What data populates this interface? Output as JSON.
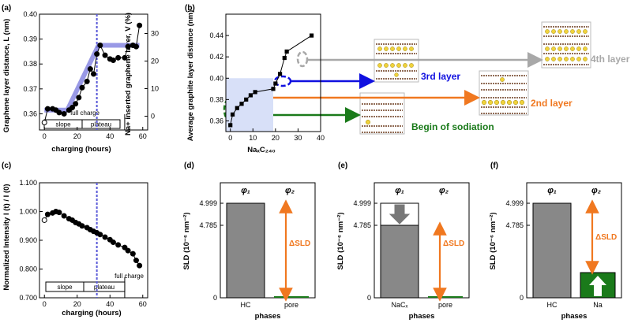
{
  "chart_data": [
    {
      "panel": "(a)",
      "type": "line",
      "xlabel": "charging (hours)",
      "ylabel": "Graphene layer distance, L (nm)",
      "y2label": "Na+ inserted graphene layer, V (%)",
      "xlim": [
        -3,
        63
      ],
      "ylim": [
        0.3535,
        0.4
      ],
      "y2lim": [
        -5,
        37
      ],
      "xticks": [
        0,
        20,
        40,
        60
      ],
      "yticks": [
        0.36,
        0.37,
        0.38,
        0.39,
        0.4
      ],
      "y2ticks": [
        0,
        10,
        20,
        30
      ],
      "series": [
        {
          "name": "",
          "kind": "band",
          "color": "#8080e0",
          "x": [
            0,
            8,
            14,
            33,
            58
          ],
          "y": [
            0.3615,
            0.3615,
            0.3615,
            0.3875,
            0.3875
          ]
        },
        {
          "name": "",
          "kind": "markers",
          "color": "#000000",
          "x": [
            0,
            2,
            5,
            7,
            9,
            12,
            15,
            17,
            19,
            21,
            23,
            26,
            28,
            30,
            32,
            34,
            37,
            40,
            42,
            45,
            49,
            51,
            54,
            56,
            58
          ],
          "y": [
            0.3565,
            0.362,
            0.362,
            0.3615,
            0.3605,
            0.36,
            0.3615,
            0.3625,
            0.364,
            0.3665,
            0.3705,
            0.373,
            0.378,
            0.376,
            0.384,
            0.3875,
            0.3835,
            0.382,
            0.3815,
            0.3825,
            0.3825,
            0.387,
            0.3875,
            0.387,
            0.3955
          ]
        }
      ],
      "vline": 32,
      "annotations": [
        "full charge",
        "slope",
        "plateau"
      ]
    },
    {
      "panel": "(b)",
      "type": "scatter",
      "xlabel": "NaₓC₂₄₀",
      "ylabel": "Average graphite layer distance (nm)",
      "xlim": [
        -2,
        40
      ],
      "ylim": [
        0.35,
        0.46
      ],
      "xticks": [
        0,
        10,
        20,
        30,
        40
      ],
      "yticks": [
        0.36,
        0.38,
        0.4,
        0.42,
        0.44
      ],
      "series": [
        {
          "name": "",
          "color": "#000000",
          "x": [
            0,
            1,
            3,
            5,
            7,
            9,
            11,
            19,
            20,
            22,
            24,
            25,
            36
          ],
          "y": [
            0.356,
            0.366,
            0.372,
            0.376,
            0.38,
            0.384,
            0.387,
            0.39,
            0.395,
            0.404,
            0.419,
            0.425,
            0.44
          ]
        }
      ],
      "annotations": [
        "3rd layer",
        "4th layer",
        "2nd layer",
        "Begin of sodiation"
      ]
    },
    {
      "panel": "(c)",
      "type": "line",
      "xlabel": "charging (hours)",
      "ylabel": "Normalized Intensity I (t) / I (0)",
      "xlim": [
        -3,
        63
      ],
      "ylim": [
        0.7,
        1.1
      ],
      "xticks": [
        0,
        20,
        40,
        60
      ],
      "yticks": [
        0.7,
        0.8,
        0.9,
        1.0,
        1.1
      ],
      "ytick_labels": [
        "0.700",
        "0.800",
        "0.900",
        "1.000",
        "1.100"
      ],
      "series": [
        {
          "name": "",
          "color": "#000000",
          "x": [
            0,
            2,
            5,
            7,
            9,
            12,
            15,
            17,
            19,
            21,
            23,
            26,
            28,
            30,
            32,
            34,
            37,
            40,
            42,
            45,
            49,
            51,
            54,
            56,
            58
          ],
          "y": [
            0.97,
            0.99,
            0.995,
            1.0,
            0.997,
            0.985,
            0.975,
            0.97,
            0.962,
            0.957,
            0.95,
            0.944,
            0.937,
            0.931,
            0.926,
            0.92,
            0.911,
            0.902,
            0.893,
            0.884,
            0.875,
            0.864,
            0.853,
            0.83,
            0.812
          ]
        }
      ],
      "vline": 32,
      "annotations": [
        "full charge",
        "slope",
        "plateau"
      ]
    },
    {
      "panel": "(d)",
      "type": "bar",
      "ylabel": "SLD (10⁻⁶ nm⁻²)",
      "xlabel": "phases",
      "categories": [
        "HC",
        "pore"
      ],
      "phase_labels": [
        "φ₁",
        "φ₂"
      ],
      "yticks": [
        "4.999",
        "4.785",
        "0"
      ],
      "delta_label": "ΔSLD"
    },
    {
      "panel": "(e)",
      "type": "bar",
      "ylabel": "SLD (10⁻⁶ nm⁻²)",
      "xlabel": "phases",
      "categories": [
        "NaCₓ",
        "pore"
      ],
      "phase_labels": [
        "φ₁",
        "φ₂"
      ],
      "yticks": [
        "4.999",
        "4.785",
        "0"
      ],
      "delta_label": "ΔSLD"
    },
    {
      "panel": "(f)",
      "type": "bar",
      "ylabel": "SLD (10⁻⁶ nm⁻²)",
      "xlabel": "phases",
      "categories": [
        "HC",
        "Na"
      ],
      "phase_labels": [
        "φ₁",
        "φ₂"
      ],
      "yticks": [
        "4.999",
        "4.785",
        "0"
      ],
      "delta_label": "ΔSLD"
    }
  ],
  "colors": {
    "axis": "#000000",
    "band": "#8080e0",
    "vline": "#5a5ad8",
    "bar_gray": "#888888",
    "orange": "#f07820",
    "green": "#1a7a1a",
    "blue": "#1010e0",
    "gray_arrow": "#a8a8a8",
    "shade": "#d8e0f8"
  }
}
